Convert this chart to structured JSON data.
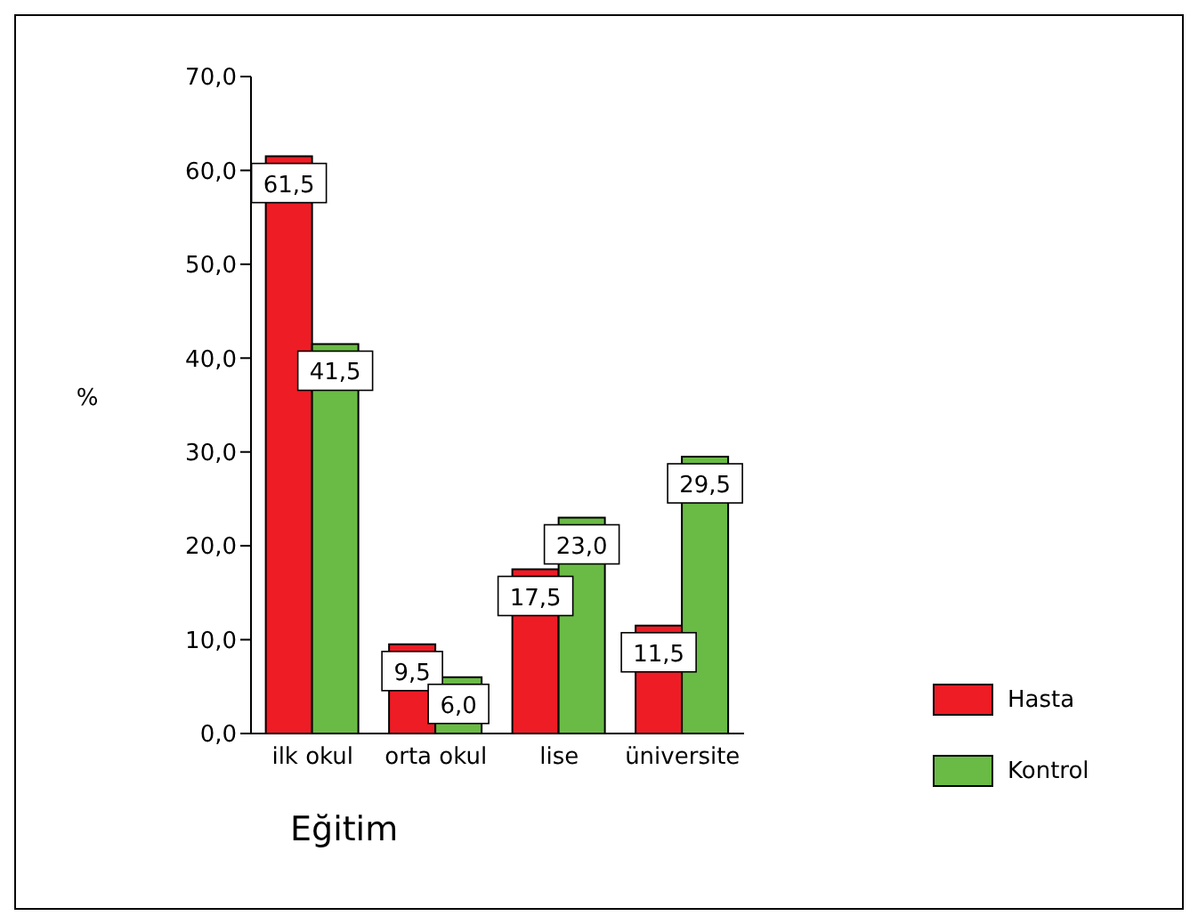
{
  "chart_data": {
    "type": "bar",
    "xlabel": "Eğitim",
    "ylabel": "%",
    "categories": [
      "ilk okul",
      "orta okul",
      "lise",
      "üniversite"
    ],
    "series": [
      {
        "name": "Hasta",
        "color": "#ee1c25",
        "values": [
          61.5,
          9.5,
          17.5,
          11.5
        ],
        "value_labels": [
          "61,5",
          "9,5",
          "17,5",
          "11,5"
        ]
      },
      {
        "name": "Kontrol",
        "color": "#6abb45",
        "values": [
          41.5,
          6.0,
          23.0,
          29.5
        ],
        "value_labels": [
          "41,5",
          "6,0",
          "23,0",
          "29,5"
        ]
      }
    ],
    "ylim": [
      0,
      70
    ],
    "yticks": [
      {
        "value": 0,
        "label": "0,0"
      },
      {
        "value": 10,
        "label": "10,0"
      },
      {
        "value": 20,
        "label": "20,0"
      },
      {
        "value": 30,
        "label": "30,0"
      },
      {
        "value": 40,
        "label": "40,0"
      },
      {
        "value": 50,
        "label": "50,0"
      },
      {
        "value": 60,
        "label": "60,0"
      },
      {
        "value": 70,
        "label": "70,0"
      }
    ],
    "grid": false,
    "legend": "right"
  }
}
